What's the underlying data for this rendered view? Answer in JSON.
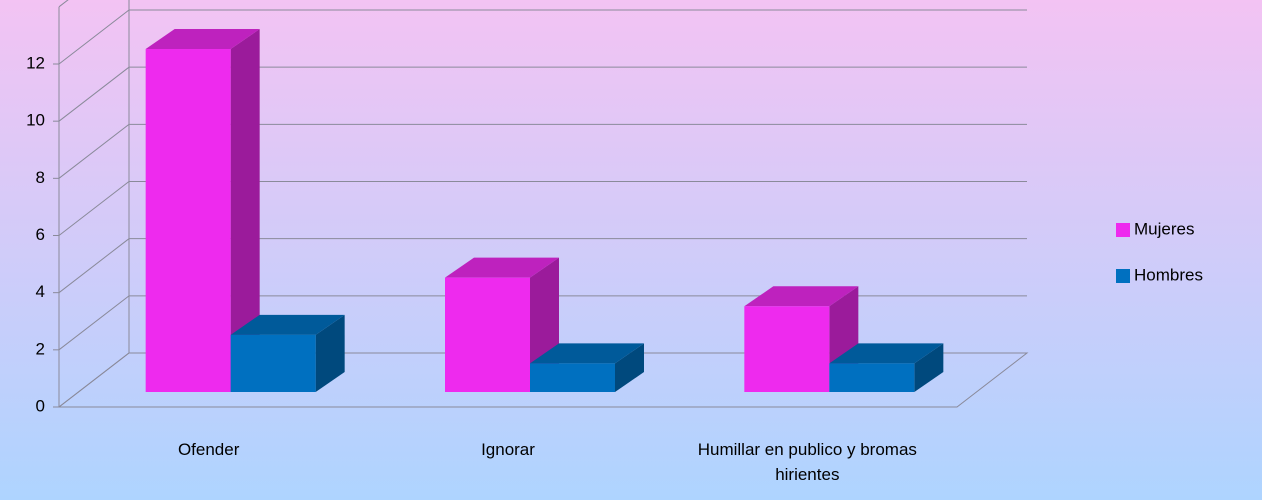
{
  "chart_data": {
    "type": "bar3d",
    "categories": [
      "Ofender",
      "Ignorar",
      "Humillar en publico y bromas hirientes"
    ],
    "series": [
      {
        "name": "Mujeres",
        "color": "#ee2aee",
        "values": [
          12,
          4,
          3
        ]
      },
      {
        "name": "Hombres",
        "color": "#0070c0",
        "values": [
          2,
          1,
          1
        ]
      }
    ],
    "ylim": [
      0,
      14
    ],
    "yticks": [
      0,
      2,
      4,
      6,
      8,
      10,
      12
    ],
    "grid": true,
    "legend": "right"
  }
}
